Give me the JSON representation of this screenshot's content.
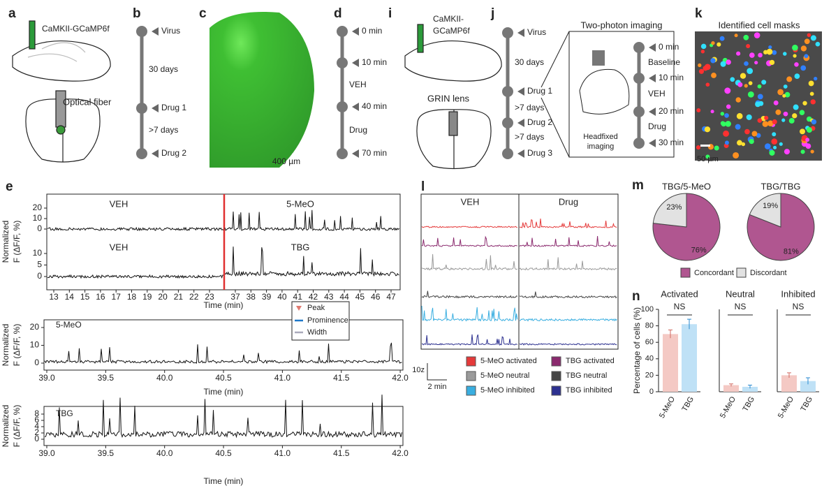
{
  "panel_letters": {
    "a": "a",
    "b": "b",
    "c": "c",
    "d": "d",
    "i": "i",
    "j": "j",
    "k": "k",
    "e": "e",
    "l": "l",
    "m": "m",
    "n": "n"
  },
  "a": {
    "virus": "CaMKII-GCaMP6f",
    "fiber": "Optical fiber"
  },
  "b": {
    "steps": [
      "Virus",
      "Drug 1",
      "Drug 2"
    ],
    "intervals": [
      "30 days",
      ">7 days"
    ]
  },
  "c": {
    "scale": "400 µm"
  },
  "d": {
    "steps": [
      "0 min",
      "10 min",
      "40 min",
      "70 min"
    ],
    "intervals": [
      "VEH",
      "Drug"
    ]
  },
  "i": {
    "virus": [
      "CaMKII-",
      "GCaMP6f"
    ],
    "lens": "GRIN lens"
  },
  "j": {
    "steps": [
      "Virus",
      "Drug 1",
      "Drug 2",
      "Drug 3"
    ],
    "intervals": [
      "30 days",
      ">7 days",
      ">7 days"
    ],
    "box_title": "Two-photon imaging",
    "box_steps": [
      "0 min",
      "10 min",
      "20 min",
      "30 min"
    ],
    "box_intervals": [
      "Baseline",
      "VEH",
      "Drug"
    ],
    "caption": [
      "Headfixed",
      "imaging"
    ]
  },
  "k": {
    "title": "Identified cell masks",
    "scale": "50 µm"
  },
  "e": {
    "ylabel": [
      "Normalized",
      "F (ΔF/F, %)"
    ],
    "xlabel": "Time (min)",
    "top": {
      "labels": [
        "VEH",
        "5-MeO",
        "VEH",
        "TBG"
      ],
      "yticks_a": [
        0,
        10,
        20
      ],
      "yticks_b": [
        0,
        5,
        10
      ],
      "xticks": [
        13,
        14,
        15,
        16,
        17,
        18,
        19,
        20,
        21,
        22,
        23,
        37,
        38,
        39,
        40,
        41,
        42,
        43,
        44,
        45,
        46,
        47
      ]
    },
    "mid": {
      "title": "5-MeO",
      "legend": [
        "Peak",
        "Prominence",
        "Width"
      ],
      "yticks": [
        0,
        10,
        20
      ],
      "xticks": [
        {
          "value": 39,
          "label": "39.0"
        },
        {
          "value": 39.5,
          "label": "39.5"
        },
        {
          "value": 40,
          "label": "40.0"
        },
        {
          "value": 40.5,
          "label": "40.5"
        },
        {
          "value": 41,
          "label": "41.0"
        },
        {
          "value": 41.5,
          "label": "41.5"
        },
        {
          "value": 42,
          "label": "42.0"
        }
      ]
    },
    "bottom": {
      "title": "TBG",
      "yticks": [
        0,
        2,
        4,
        6,
        8
      ],
      "xticks": [
        {
          "value": 39,
          "label": "39.0"
        },
        {
          "value": 39.5,
          "label": "39.5"
        },
        {
          "value": 40,
          "label": "40.0"
        },
        {
          "value": 40.5,
          "label": "40.5"
        },
        {
          "value": 41,
          "label": "41.0"
        },
        {
          "value": 41.5,
          "label": "41.5"
        },
        {
          "value": 42,
          "label": "42.0"
        }
      ]
    }
  },
  "l": {
    "headers": [
      "VEH",
      "Drug"
    ],
    "scale": [
      "10z",
      "2 min"
    ],
    "legend": [
      {
        "name": "5-MeO activated",
        "color": "#e53a3a"
      },
      {
        "name": "TBG activated",
        "color": "#8b2a6e"
      },
      {
        "name": "5-MeO neutral",
        "color": "#9a9a9a"
      },
      {
        "name": "TBG neutral",
        "color": "#444444"
      },
      {
        "name": "5-MeO inhibited",
        "color": "#39aee0"
      },
      {
        "name": "TBG inhibited",
        "color": "#2d3190"
      }
    ]
  },
  "chart_data": [
    {
      "type": "pie",
      "title": "TBG/5-MeO",
      "categories": [
        "Concordant",
        "Discordant"
      ],
      "values": [
        76,
        23
      ],
      "value_labels": [
        "76%",
        "23%"
      ],
      "colors": [
        "#b05690",
        "#e2e2e2"
      ]
    },
    {
      "type": "pie",
      "title": "TBG/TBG",
      "categories": [
        "Concordant",
        "Discordant"
      ],
      "values": [
        81,
        19
      ],
      "value_labels": [
        "81%",
        "19%"
      ],
      "colors": [
        "#b05690",
        "#e2e2e2"
      ]
    },
    {
      "type": "bar",
      "title": "Activated",
      "annotation": "NS",
      "ylabel": "Percentage of cells (%)",
      "categories": [
        "5-MeO",
        "TBG"
      ],
      "values": [
        70,
        82
      ],
      "errors": [
        5,
        6
      ],
      "colors": [
        "#f4c9c4",
        "#bfe1f6"
      ],
      "ylim": [
        0,
        100
      ],
      "yticks": [
        0,
        20,
        40,
        60,
        80,
        100
      ]
    },
    {
      "type": "bar",
      "title": "Neutral",
      "annotation": "NS",
      "categories": [
        "5-MeO",
        "TBG"
      ],
      "values": [
        8,
        6
      ],
      "errors": [
        1.5,
        2
      ],
      "colors": [
        "#f4c9c4",
        "#bfe1f6"
      ],
      "ylim": [
        0,
        100
      ]
    },
    {
      "type": "bar",
      "title": "Inhibited",
      "annotation": "NS",
      "categories": [
        "5-MeO",
        "TBG"
      ],
      "values": [
        20,
        13
      ],
      "errors": [
        3,
        4
      ],
      "colors": [
        "#f4c9c4",
        "#bfe1f6"
      ],
      "ylim": [
        0,
        100
      ]
    }
  ]
}
